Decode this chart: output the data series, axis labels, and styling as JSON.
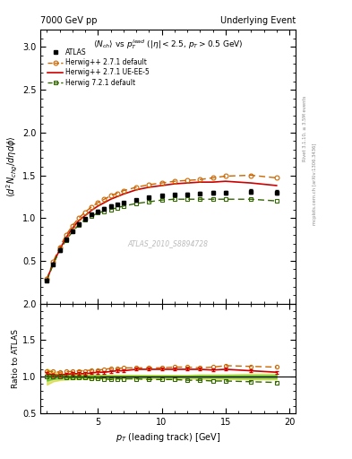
{
  "title_left": "7000 GeV pp",
  "title_right": "Underlying Event",
  "main_ylabel": "$\\langle d^2 N_{chg}/d\\eta d\\phi \\rangle$",
  "main_title": "$\\langle N_{ch}\\rangle$ vs $p_T^{lead}$ ($|\\eta| < 2.5$, $p_T > 0.5$ GeV)",
  "ratio_ylabel": "Ratio to ATLAS",
  "xlabel": "$p_T$ (leading track) [GeV]",
  "watermark": "ATLAS_2010_S8894728",
  "right_label1": "Rivet 3.1.10, ≥ 3.5M events",
  "right_label2": "mcplots.cern.ch [arXiv:1306.3436]",
  "xlim": [
    0.5,
    20.5
  ],
  "main_ylim": [
    0.0,
    3.2
  ],
  "ratio_ylim": [
    0.5,
    2.0
  ],
  "main_yticks": [
    0.5,
    1.0,
    1.5,
    2.0,
    2.5,
    3.0
  ],
  "ratio_yticks": [
    0.5,
    1.0,
    1.5,
    2.0
  ],
  "atlas_pt": [
    1.0,
    1.5,
    2.0,
    2.5,
    3.0,
    3.5,
    4.0,
    4.5,
    5.0,
    5.5,
    6.0,
    6.5,
    7.0,
    8.0,
    9.0,
    10.0,
    11.0,
    12.0,
    13.0,
    14.0,
    15.0,
    17.0,
    19.0
  ],
  "atlas_val": [
    0.27,
    0.46,
    0.62,
    0.75,
    0.85,
    0.93,
    0.99,
    1.04,
    1.08,
    1.11,
    1.14,
    1.16,
    1.18,
    1.21,
    1.24,
    1.26,
    1.27,
    1.28,
    1.29,
    1.3,
    1.3,
    1.31,
    1.3
  ],
  "atlas_err": [
    0.015,
    0.015,
    0.015,
    0.015,
    0.015,
    0.015,
    0.015,
    0.015,
    0.015,
    0.015,
    0.015,
    0.015,
    0.015,
    0.015,
    0.015,
    0.015,
    0.015,
    0.015,
    0.02,
    0.02,
    0.02,
    0.025,
    0.025
  ],
  "hw271d_pt": [
    1.0,
    1.5,
    2.0,
    2.5,
    3.0,
    3.5,
    4.0,
    4.5,
    5.0,
    5.5,
    6.0,
    6.5,
    7.0,
    8.0,
    9.0,
    10.0,
    11.0,
    12.0,
    13.0,
    14.0,
    15.0,
    17.0,
    19.0
  ],
  "hw271d_val": [
    0.29,
    0.49,
    0.66,
    0.8,
    0.91,
    1.0,
    1.07,
    1.13,
    1.18,
    1.22,
    1.26,
    1.29,
    1.32,
    1.36,
    1.39,
    1.41,
    1.43,
    1.44,
    1.45,
    1.47,
    1.49,
    1.5,
    1.47
  ],
  "hw271ue_pt": [
    1.0,
    1.5,
    2.0,
    2.5,
    3.0,
    3.5,
    4.0,
    4.5,
    5.0,
    5.5,
    6.0,
    6.5,
    7.0,
    8.0,
    9.0,
    10.0,
    11.0,
    12.0,
    13.0,
    14.0,
    15.0,
    17.0,
    19.0
  ],
  "hw271ue_val": [
    0.28,
    0.47,
    0.63,
    0.77,
    0.88,
    0.97,
    1.03,
    1.09,
    1.14,
    1.18,
    1.22,
    1.25,
    1.28,
    1.33,
    1.36,
    1.38,
    1.4,
    1.41,
    1.42,
    1.42,
    1.43,
    1.41,
    1.38
  ],
  "hw721d_pt": [
    1.0,
    1.5,
    2.0,
    2.5,
    3.0,
    3.5,
    4.0,
    4.5,
    5.0,
    5.5,
    6.0,
    6.5,
    7.0,
    8.0,
    9.0,
    10.0,
    11.0,
    12.0,
    13.0,
    14.0,
    15.0,
    17.0,
    19.0
  ],
  "hw721d_val": [
    0.27,
    0.46,
    0.62,
    0.74,
    0.84,
    0.92,
    0.98,
    1.02,
    1.06,
    1.08,
    1.1,
    1.12,
    1.14,
    1.17,
    1.19,
    1.21,
    1.22,
    1.22,
    1.22,
    1.22,
    1.22,
    1.22,
    1.2
  ],
  "ratio_hw271d_val": [
    1.07,
    1.07,
    1.06,
    1.07,
    1.07,
    1.08,
    1.08,
    1.09,
    1.09,
    1.1,
    1.11,
    1.11,
    1.12,
    1.12,
    1.12,
    1.12,
    1.13,
    1.13,
    1.12,
    1.13,
    1.15,
    1.14,
    1.13
  ],
  "ratio_hw271ue_val": [
    1.04,
    1.02,
    1.02,
    1.03,
    1.04,
    1.04,
    1.04,
    1.05,
    1.06,
    1.06,
    1.07,
    1.08,
    1.08,
    1.1,
    1.1,
    1.1,
    1.1,
    1.1,
    1.1,
    1.09,
    1.1,
    1.08,
    1.06
  ],
  "ratio_hw721d_val": [
    1.0,
    1.0,
    1.0,
    0.99,
    0.99,
    0.99,
    0.99,
    0.98,
    0.98,
    0.97,
    0.96,
    0.97,
    0.97,
    0.97,
    0.96,
    0.96,
    0.96,
    0.95,
    0.95,
    0.94,
    0.94,
    0.93,
    0.92
  ],
  "color_atlas": "#000000",
  "color_hw271d": "#cc6600",
  "color_hw271ue": "#cc0000",
  "color_hw721d": "#336600",
  "green_band_color": "#00aa00",
  "yellow_band_color": "#cccc00"
}
